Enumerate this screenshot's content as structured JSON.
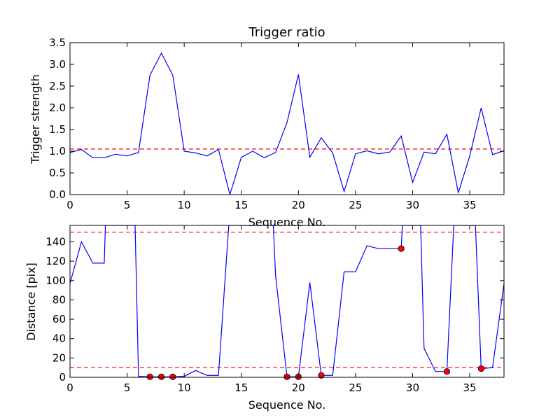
{
  "chart_data": [
    {
      "type": "line",
      "title": "Trigger ratio",
      "xlabel": "Sequence No.",
      "ylabel": "Trigger strength",
      "xlim": [
        0,
        38
      ],
      "ylim": [
        0,
        3.5
      ],
      "xticks": [
        0,
        5,
        10,
        15,
        20,
        25,
        30,
        35
      ],
      "yticks": [
        0.0,
        0.5,
        1.0,
        1.5,
        2.0,
        2.5,
        3.0,
        3.5
      ],
      "grid": false,
      "threshold_lines": [
        1.05
      ],
      "colors": {
        "line": "#0000ff",
        "threshold": "#ff0000"
      },
      "x": [
        0,
        1,
        2,
        3,
        4,
        5,
        6,
        7,
        8,
        9,
        10,
        11,
        12,
        13,
        14,
        15,
        16,
        17,
        18,
        19,
        20,
        21,
        22,
        23,
        24,
        25,
        26,
        27,
        28,
        29,
        30,
        31,
        32,
        33,
        34,
        35,
        36,
        37,
        38
      ],
      "values": [
        0.97,
        1.04,
        0.85,
        0.85,
        0.93,
        0.89,
        0.97,
        2.75,
        3.26,
        2.75,
        1.0,
        0.96,
        0.89,
        1.04,
        0.0,
        0.86,
        1.0,
        0.85,
        0.97,
        1.66,
        2.77,
        0.86,
        1.31,
        0.96,
        0.07,
        0.94,
        1.01,
        0.94,
        0.98,
        1.35,
        0.28,
        0.98,
        0.94,
        1.39,
        0.04,
        0.89,
        2.0,
        0.92,
        1.01
      ]
    },
    {
      "type": "line",
      "title": "",
      "xlabel": "Sequence No.",
      "ylabel": "Distance [pix]",
      "xlim": [
        0,
        38
      ],
      "ylim": [
        0,
        157
      ],
      "xticks": [
        0,
        5,
        10,
        15,
        20,
        25,
        30,
        35
      ],
      "yticks": [
        0,
        20,
        40,
        60,
        80,
        100,
        120,
        140
      ],
      "grid": false,
      "threshold_lines": [
        10,
        150
      ],
      "colors": {
        "line": "#0000ff",
        "threshold": "#ff0000",
        "marker": "#ff0000"
      },
      "x": [
        0,
        1,
        2,
        3,
        3.1,
        5.7,
        6,
        7,
        8,
        9,
        10,
        11,
        12,
        13,
        13.9,
        17.8,
        18,
        19,
        20,
        21,
        22,
        23,
        24,
        25,
        26,
        27,
        28,
        29,
        29.1,
        30.7,
        31,
        32,
        33,
        33.6,
        35.5,
        36,
        37,
        38
      ],
      "values": [
        97,
        140,
        118,
        118,
        157,
        157,
        1,
        0.5,
        0.5,
        0.5,
        1,
        7,
        2,
        2,
        157,
        157,
        105,
        0.5,
        0.5,
        98,
        2,
        2,
        109,
        109,
        136,
        133,
        133,
        133,
        157,
        157,
        30,
        6,
        6,
        157,
        157,
        9,
        10,
        97
      ],
      "markers": {
        "x": [
          7,
          8,
          9,
          19,
          20,
          22,
          29,
          33,
          36
        ],
        "values": [
          0.5,
          0.5,
          0.5,
          0.5,
          0.5,
          2,
          133,
          6,
          9
        ]
      }
    }
  ]
}
